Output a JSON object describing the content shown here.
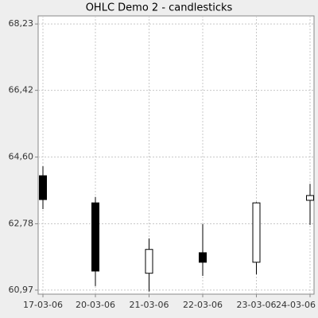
{
  "chart_data": {
    "type": "candlestick",
    "title": "OHLC Demo 2 - candlesticks",
    "categories": [
      "17-03-06",
      "20-03-06",
      "21-03-06",
      "22-03-06",
      "23-03-06",
      "24-03-06"
    ],
    "open": [
      64.09,
      63.35,
      61.43,
      61.99,
      61.73,
      63.42
    ],
    "high": [
      64.35,
      63.51,
      62.38,
      62.77,
      63.37,
      63.87
    ],
    "low": [
      63.18,
      61.08,
      60.93,
      61.36,
      61.4,
      62.75
    ],
    "close": [
      63.44,
      61.49,
      62.08,
      61.73,
      63.35,
      63.55
    ],
    "up_color": "#ffffff",
    "down_color": "#000000",
    "ylim": [
      60.86,
      68.45
    ],
    "yticks": [
      {
        "value": 60.97,
        "label": "60,97"
      },
      {
        "value": 62.78,
        "label": "62,78"
      },
      {
        "value": 64.6,
        "label": "64,60"
      },
      {
        "value": 66.42,
        "label": "66,42"
      },
      {
        "value": 68.23,
        "label": "68,23"
      }
    ],
    "grid": true
  }
}
